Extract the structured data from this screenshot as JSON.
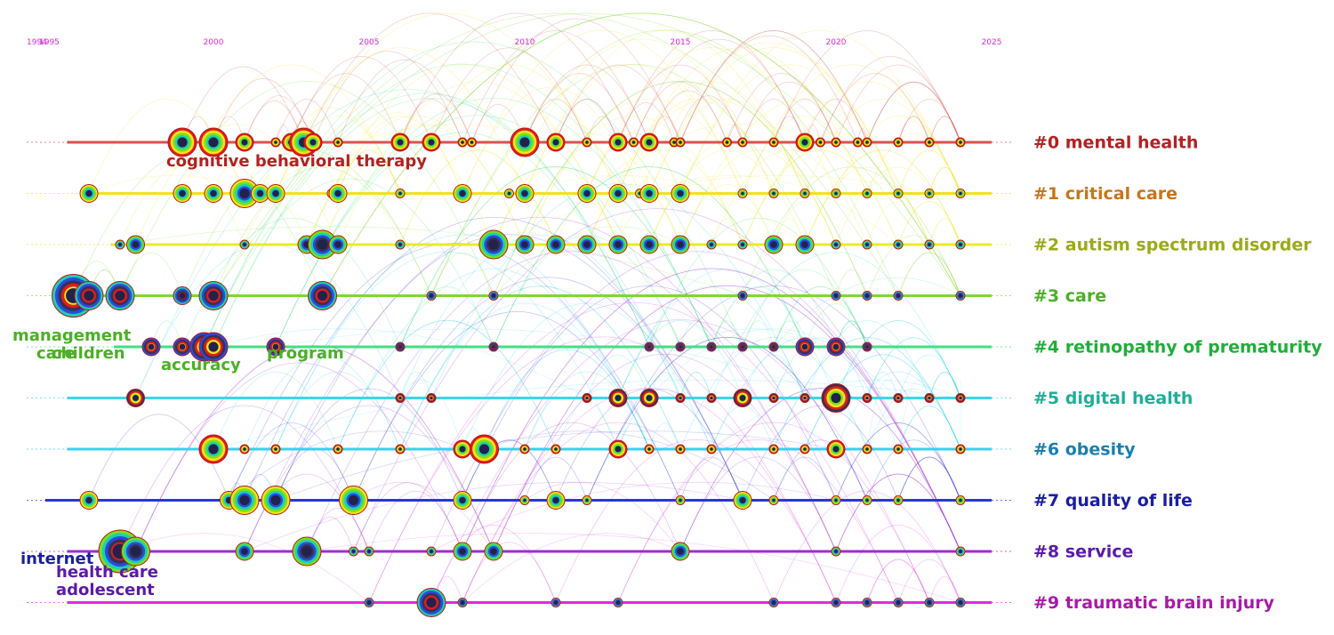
{
  "figure": {
    "x_axis": {
      "type": "time",
      "start_year": 1994,
      "end_year": 2025,
      "ticks": [
        {
          "year": 1994,
          "label": "1994"
        },
        {
          "year": 1995,
          "label": "1995"
        },
        {
          "year": 2000,
          "label": "2000"
        },
        {
          "year": 2005,
          "label": "2005"
        },
        {
          "year": 2010,
          "label": "2010"
        },
        {
          "year": 2015,
          "label": "2015"
        },
        {
          "year": 2020,
          "label": "2020"
        },
        {
          "year": 2025,
          "label": "2025"
        }
      ]
    },
    "clusters": [
      {
        "label": "#0 mental health",
        "color": "#b22222",
        "line_color": "#d9534f",
        "start_year": 1995.3,
        "nodes": [
          {
            "year": 1999.0,
            "s": 3
          },
          {
            "year": 2000.0,
            "s": 3
          },
          {
            "year": 2001.0,
            "s": 2
          },
          {
            "year": 2002.0,
            "s": 1
          },
          {
            "year": 2002.5,
            "s": 2
          },
          {
            "year": 2002.9,
            "s": 3
          },
          {
            "year": 2003.2,
            "s": 2
          },
          {
            "year": 2004.0,
            "s": 1
          },
          {
            "year": 2006.0,
            "s": 2
          },
          {
            "year": 2007.0,
            "s": 2
          },
          {
            "year": 2008.0,
            "s": 1
          },
          {
            "year": 2008.3,
            "s": 1
          },
          {
            "year": 2010.0,
            "s": 3
          },
          {
            "year": 2011.0,
            "s": 2
          },
          {
            "year": 2012.0,
            "s": 1
          },
          {
            "year": 2013.0,
            "s": 2
          },
          {
            "year": 2013.5,
            "s": 1
          },
          {
            "year": 2014.0,
            "s": 2
          },
          {
            "year": 2014.8,
            "s": 1
          },
          {
            "year": 2015.0,
            "s": 1
          },
          {
            "year": 2016.5,
            "s": 1
          },
          {
            "year": 2017.0,
            "s": 1
          },
          {
            "year": 2018.0,
            "s": 1
          },
          {
            "year": 2019.0,
            "s": 2
          },
          {
            "year": 2019.5,
            "s": 1
          },
          {
            "year": 2020.0,
            "s": 1
          },
          {
            "year": 2020.7,
            "s": 1
          },
          {
            "year": 2021.0,
            "s": 1
          },
          {
            "year": 2022.0,
            "s": 1
          },
          {
            "year": 2023.0,
            "s": 1
          },
          {
            "year": 2024.0,
            "s": 1
          }
        ]
      },
      {
        "label": "#1 critical care",
        "color": "#c7751a",
        "line_color": "#f4e120",
        "start_year": 1996.0,
        "nodes": [
          {
            "year": 1996.0,
            "s": 2
          },
          {
            "year": 1999.0,
            "s": 2
          },
          {
            "year": 2000.0,
            "s": 2
          },
          {
            "year": 2001.0,
            "s": 3
          },
          {
            "year": 2001.5,
            "s": 2
          },
          {
            "year": 2002.0,
            "s": 2
          },
          {
            "year": 2003.8,
            "s": 1
          },
          {
            "year": 2004.0,
            "s": 2
          },
          {
            "year": 2006.0,
            "s": 1
          },
          {
            "year": 2008.0,
            "s": 2
          },
          {
            "year": 2009.5,
            "s": 1
          },
          {
            "year": 2010.0,
            "s": 2
          },
          {
            "year": 2012.0,
            "s": 2
          },
          {
            "year": 2013.0,
            "s": 2
          },
          {
            "year": 2013.7,
            "s": 1
          },
          {
            "year": 2014.0,
            "s": 2
          },
          {
            "year": 2015.0,
            "s": 2
          },
          {
            "year": 2017.0,
            "s": 1
          },
          {
            "year": 2018.0,
            "s": 1
          },
          {
            "year": 2019.0,
            "s": 1
          },
          {
            "year": 2020.0,
            "s": 1
          },
          {
            "year": 2021.0,
            "s": 1
          },
          {
            "year": 2022.0,
            "s": 1
          },
          {
            "year": 2023.0,
            "s": 1
          },
          {
            "year": 2024.0,
            "s": 1
          }
        ]
      },
      {
        "label": "#2 autism spectrum disorder",
        "color": "#9aaa1a",
        "line_color": "#eaea2a",
        "start_year": 1996.7,
        "nodes": [
          {
            "year": 1997.0,
            "s": 1
          },
          {
            "year": 1997.5,
            "s": 2
          },
          {
            "year": 2001.0,
            "s": 1
          },
          {
            "year": 2003.0,
            "s": 2
          },
          {
            "year": 2003.5,
            "s": 3
          },
          {
            "year": 2004.0,
            "s": 2
          },
          {
            "year": 2006.0,
            "s": 1
          },
          {
            "year": 2009.0,
            "s": 3
          },
          {
            "year": 2010.0,
            "s": 2
          },
          {
            "year": 2011.0,
            "s": 2
          },
          {
            "year": 2012.0,
            "s": 2
          },
          {
            "year": 2013.0,
            "s": 2
          },
          {
            "year": 2014.0,
            "s": 2
          },
          {
            "year": 2015.0,
            "s": 2
          },
          {
            "year": 2016.0,
            "s": 1
          },
          {
            "year": 2017.0,
            "s": 1
          },
          {
            "year": 2018.0,
            "s": 2
          },
          {
            "year": 2019.0,
            "s": 2
          },
          {
            "year": 2020.0,
            "s": 1
          },
          {
            "year": 2021.0,
            "s": 1
          },
          {
            "year": 2022.0,
            "s": 1
          },
          {
            "year": 2023.0,
            "s": 1
          },
          {
            "year": 2024.0,
            "s": 1
          }
        ]
      },
      {
        "label": "#3 care",
        "color": "#4caf27",
        "line_color": "#7fd92a",
        "start_year": 1995.0,
        "nodes": [
          {
            "year": 1995.5,
            "s": 4
          },
          {
            "year": 1996.0,
            "s": 3
          },
          {
            "year": 1997.0,
            "s": 3
          },
          {
            "year": 1999.0,
            "s": 2
          },
          {
            "year": 2000.0,
            "s": 3
          },
          {
            "year": 2003.5,
            "s": 3
          },
          {
            "year": 2007.0,
            "s": 1
          },
          {
            "year": 2009.0,
            "s": 1
          },
          {
            "year": 2017.0,
            "s": 1
          },
          {
            "year": 2020.0,
            "s": 1
          },
          {
            "year": 2021.0,
            "s": 1
          },
          {
            "year": 2022.0,
            "s": 1
          },
          {
            "year": 2024.0,
            "s": 1
          }
        ]
      },
      {
        "label": "#4 retinopathy of prematurity",
        "color": "#1fae3a",
        "line_color": "#42e083",
        "start_year": 1996.8,
        "nodes": [
          {
            "year": 1998.0,
            "s": 2
          },
          {
            "year": 1999.0,
            "s": 2
          },
          {
            "year": 1999.7,
            "s": 3
          },
          {
            "year": 2000.0,
            "s": 3
          },
          {
            "year": 2002.0,
            "s": 2
          },
          {
            "year": 2006.0,
            "s": 1
          },
          {
            "year": 2009.0,
            "s": 1
          },
          {
            "year": 2014.0,
            "s": 1
          },
          {
            "year": 2015.0,
            "s": 1
          },
          {
            "year": 2016.0,
            "s": 1
          },
          {
            "year": 2017.0,
            "s": 1
          },
          {
            "year": 2018.0,
            "s": 1
          },
          {
            "year": 2019.0,
            "s": 2
          },
          {
            "year": 2020.0,
            "s": 2
          },
          {
            "year": 2021.0,
            "s": 1
          }
        ]
      },
      {
        "label": "#5 digital health",
        "color": "#1fae98",
        "line_color": "#3ad8e8",
        "start_year": 1995.3,
        "nodes": [
          {
            "year": 1997.5,
            "s": 2
          },
          {
            "year": 2006.0,
            "s": 1
          },
          {
            "year": 2007.0,
            "s": 1
          },
          {
            "year": 2012.0,
            "s": 1
          },
          {
            "year": 2013.0,
            "s": 2
          },
          {
            "year": 2014.0,
            "s": 2
          },
          {
            "year": 2015.0,
            "s": 1
          },
          {
            "year": 2016.0,
            "s": 1
          },
          {
            "year": 2017.0,
            "s": 2
          },
          {
            "year": 2018.0,
            "s": 1
          },
          {
            "year": 2019.0,
            "s": 1
          },
          {
            "year": 2020.0,
            "s": 3
          },
          {
            "year": 2021.0,
            "s": 1
          },
          {
            "year": 2022.0,
            "s": 1
          },
          {
            "year": 2023.0,
            "s": 1
          },
          {
            "year": 2024.0,
            "s": 1
          }
        ]
      },
      {
        "label": "#6 obesity",
        "color": "#1a7fb0",
        "line_color": "#3ad0f0",
        "start_year": 1995.3,
        "nodes": [
          {
            "year": 2000.0,
            "s": 3
          },
          {
            "year": 2001.0,
            "s": 1
          },
          {
            "year": 2002.0,
            "s": 1
          },
          {
            "year": 2004.0,
            "s": 1
          },
          {
            "year": 2006.0,
            "s": 1
          },
          {
            "year": 2008.0,
            "s": 2
          },
          {
            "year": 2008.7,
            "s": 3
          },
          {
            "year": 2010.0,
            "s": 1
          },
          {
            "year": 2011.0,
            "s": 1
          },
          {
            "year": 2013.0,
            "s": 2
          },
          {
            "year": 2014.0,
            "s": 1
          },
          {
            "year": 2015.0,
            "s": 1
          },
          {
            "year": 2016.0,
            "s": 1
          },
          {
            "year": 2018.0,
            "s": 1
          },
          {
            "year": 2019.0,
            "s": 1
          },
          {
            "year": 2020.0,
            "s": 2
          },
          {
            "year": 2021.0,
            "s": 1
          },
          {
            "year": 2022.0,
            "s": 1
          },
          {
            "year": 2024.0,
            "s": 1
          }
        ]
      },
      {
        "label": "#7 quality of life",
        "color": "#1a1fa0",
        "line_color": "#2a35d8",
        "start_year": 1994.6,
        "nodes": [
          {
            "year": 1996.0,
            "s": 2
          },
          {
            "year": 2000.5,
            "s": 2
          },
          {
            "year": 2001.0,
            "s": 3
          },
          {
            "year": 2002.0,
            "s": 3
          },
          {
            "year": 2004.5,
            "s": 3
          },
          {
            "year": 2008.0,
            "s": 2
          },
          {
            "year": 2010.0,
            "s": 1
          },
          {
            "year": 2011.0,
            "s": 2
          },
          {
            "year": 2012.0,
            "s": 1
          },
          {
            "year": 2015.0,
            "s": 1
          },
          {
            "year": 2017.0,
            "s": 2
          },
          {
            "year": 2018.0,
            "s": 1
          },
          {
            "year": 2020.0,
            "s": 1
          },
          {
            "year": 2021.0,
            "s": 1
          },
          {
            "year": 2022.0,
            "s": 1
          },
          {
            "year": 2024.0,
            "s": 1
          }
        ]
      },
      {
        "label": "#8 service",
        "color": "#5a1aa8",
        "line_color": "#a12ad8",
        "start_year": 1995.3,
        "nodes": [
          {
            "year": 1997.0,
            "s": 4
          },
          {
            "year": 1997.5,
            "s": 3
          },
          {
            "year": 2001.0,
            "s": 2
          },
          {
            "year": 2003.0,
            "s": 3
          },
          {
            "year": 2004.5,
            "s": 1
          },
          {
            "year": 2005.0,
            "s": 1
          },
          {
            "year": 2007.0,
            "s": 1
          },
          {
            "year": 2008.0,
            "s": 2
          },
          {
            "year": 2009.0,
            "s": 2
          },
          {
            "year": 2015.0,
            "s": 2
          },
          {
            "year": 2020.0,
            "s": 1
          },
          {
            "year": 2024.0,
            "s": 1
          }
        ]
      },
      {
        "label": "#9 traumatic brain injury",
        "color": "#a81aa8",
        "line_color": "#e02ae0",
        "start_year": 1995.3,
        "nodes": [
          {
            "year": 2005.0,
            "s": 1
          },
          {
            "year": 2007.0,
            "s": 3
          },
          {
            "year": 2008.0,
            "s": 1
          },
          {
            "year": 2011.0,
            "s": 1
          },
          {
            "year": 2013.0,
            "s": 1
          },
          {
            "year": 2018.0,
            "s": 1
          },
          {
            "year": 2020.0,
            "s": 1
          },
          {
            "year": 2021.0,
            "s": 1
          },
          {
            "year": 2022.0,
            "s": 1
          },
          {
            "year": 2023.0,
            "s": 1
          },
          {
            "year": 2024.0,
            "s": 1
          }
        ]
      }
    ],
    "terms": [
      {
        "text": "cognitive behavioral therapy",
        "cluster": 0,
        "color": "#b22222"
      },
      {
        "text": "management",
        "cluster": 3,
        "color": "#4caf27"
      },
      {
        "text": "care",
        "cluster": 3,
        "color": "#4caf27"
      },
      {
        "text": "children",
        "cluster": 3,
        "color": "#4caf27"
      },
      {
        "text": "accuracy",
        "cluster": 4,
        "color": "#4caf27"
      },
      {
        "text": "program",
        "cluster": 4,
        "color": "#4caf27"
      },
      {
        "text": "internet",
        "cluster": 8,
        "color": "#1a1fa0"
      },
      {
        "text": "health care",
        "cluster": 8,
        "color": "#5a1aa8"
      },
      {
        "text": "adolescent",
        "cluster": 8,
        "color": "#5a1aa8"
      }
    ]
  }
}
